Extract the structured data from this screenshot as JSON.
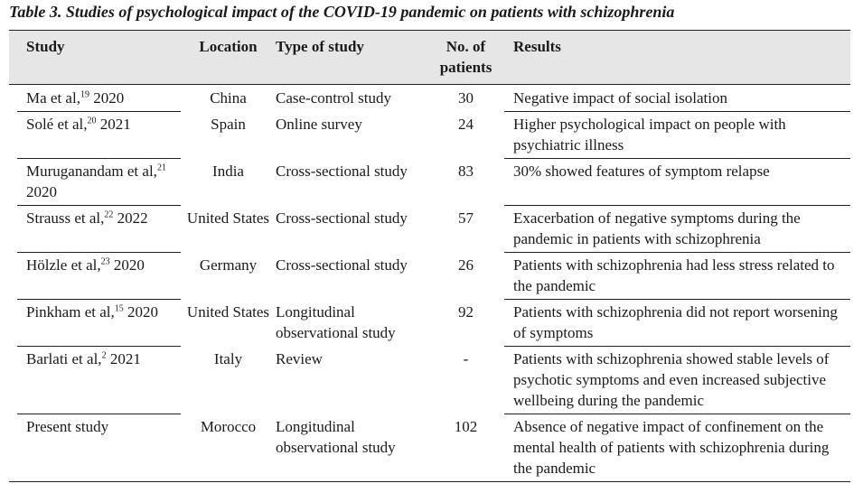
{
  "caption": "Table 3. Studies of psychological impact of the COVID-19 pandemic on patients with schizophrenia",
  "headers": {
    "study": "Study",
    "location": "Location",
    "type": "Type of study",
    "num_line1": "No. of",
    "num_line2": "patients",
    "results": "Results"
  },
  "rows": [
    {
      "study_name": "Ma et al,",
      "ref": "19",
      "year": " 2020",
      "location": "China",
      "type": "Case-control study",
      "num": "30",
      "results": "Negative impact of social isolation"
    },
    {
      "study_name": "Solé et al,",
      "ref": "20",
      "year": " 2021",
      "location": "Spain",
      "type": "Online survey",
      "num": "24",
      "results": "Higher psychological impact on people with psychiatric illness"
    },
    {
      "study_name": "Muruganandam et al,",
      "ref": "21",
      "year": " 2020",
      "location": "India",
      "type": "Cross-sectional study",
      "num": "83",
      "results": "30% showed features of symptom relapse"
    },
    {
      "study_name": "Strauss et al,",
      "ref": "22",
      "year": " 2022",
      "location": "United States",
      "type": "Cross-sectional study",
      "num": "57",
      "results": "Exacerbation of negative symptoms during the pandemic in patients with schizophrenia"
    },
    {
      "study_name": "Hölzle et al,",
      "ref": "23",
      "year": " 2020",
      "location": "Germany",
      "type": "Cross-sectional study",
      "num": "26",
      "results": "Patients with schizophrenia had less stress related to the pandemic"
    },
    {
      "study_name": "Pinkham et al,",
      "ref": "15",
      "year": " 2020",
      "location": "United States",
      "type": "Longitudinal observational study",
      "num": "92",
      "results": "Patients with schizophrenia did not report worsening of symptoms"
    },
    {
      "study_name": "Barlati et al,",
      "ref": "2",
      "year": " 2021",
      "location": "Italy",
      "type": "Review",
      "num": "-",
      "results": "Patients with schizophrenia showed stable levels of psychotic symptoms and even increased subjective wellbeing during the pandemic"
    },
    {
      "study_name": "Present study",
      "ref": "",
      "year": "",
      "location": "Morocco",
      "type": "Longitudinal observational study",
      "num": "102",
      "results": "Absence of negative impact of confinement on the mental health of patients with schizophrenia during the pandemic"
    }
  ]
}
